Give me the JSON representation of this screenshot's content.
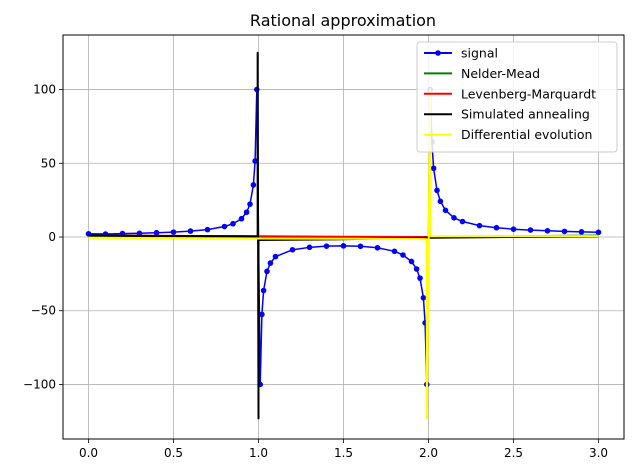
{
  "chart_data": {
    "type": "line",
    "title": "Rational approximation",
    "xlabel": "",
    "ylabel": "",
    "xlim": [
      -0.15,
      3.15
    ],
    "ylim": [
      -137,
      137
    ],
    "xticks": [
      0.0,
      0.5,
      1.0,
      1.5,
      2.0,
      2.5,
      3.0
    ],
    "xtick_labels": [
      "0.0",
      "0.5",
      "1.0",
      "1.5",
      "2.0",
      "2.5",
      "3.0"
    ],
    "yticks": [
      -100,
      -50,
      0,
      50,
      100
    ],
    "ytick_labels": [
      "−100",
      "−50",
      "0",
      "50",
      "100"
    ],
    "grid": true,
    "legend_position": "top-right",
    "series": [
      {
        "name": "signal",
        "color": "#0000ff",
        "marker": "dot",
        "points": [
          [
            0.0,
            2.2
          ],
          [
            0.1,
            2.0
          ],
          [
            0.2,
            2.3
          ],
          [
            0.3,
            2.5
          ],
          [
            0.4,
            2.9
          ],
          [
            0.5,
            3.3
          ],
          [
            0.6,
            4.0
          ],
          [
            0.7,
            5.0
          ],
          [
            0.8,
            7.1
          ],
          [
            0.85,
            9.0
          ],
          [
            0.9,
            12.4
          ],
          [
            0.93,
            16.8
          ],
          [
            0.95,
            22.3
          ],
          [
            0.97,
            35.3
          ],
          [
            0.98,
            51.5
          ],
          [
            0.99,
            100.0
          ],
          [
            1.01,
            -100.0
          ],
          [
            1.02,
            -52.5
          ],
          [
            1.03,
            -36.3
          ],
          [
            1.05,
            -23.3
          ],
          [
            1.07,
            -17.7
          ],
          [
            1.1,
            -13.3
          ],
          [
            1.2,
            -8.7
          ],
          [
            1.3,
            -7.0
          ],
          [
            1.4,
            -6.2
          ],
          [
            1.5,
            -6.0
          ],
          [
            1.6,
            -6.3
          ],
          [
            1.7,
            -7.3
          ],
          [
            1.8,
            -9.7
          ],
          [
            1.85,
            -12.2
          ],
          [
            1.9,
            -16.6
          ],
          [
            1.93,
            -21.7
          ],
          [
            1.95,
            -27.9
          ],
          [
            1.97,
            -41.2
          ],
          [
            1.98,
            -58.2
          ],
          [
            1.99,
            -100.0
          ],
          [
            2.01,
            100.0
          ],
          [
            2.02,
            64.5
          ],
          [
            2.03,
            46.6
          ],
          [
            2.05,
            31.6
          ],
          [
            2.07,
            24.2
          ],
          [
            2.1,
            18.1
          ],
          [
            2.15,
            13.0
          ],
          [
            2.2,
            10.5
          ],
          [
            2.3,
            7.7
          ],
          [
            2.4,
            6.3
          ],
          [
            2.5,
            5.3
          ],
          [
            2.6,
            4.7
          ],
          [
            2.7,
            4.2
          ],
          [
            2.8,
            3.8
          ],
          [
            2.9,
            3.5
          ],
          [
            3.0,
            3.2
          ]
        ]
      },
      {
        "name": "Nelder-Mead",
        "color": "#008000",
        "points": [
          [
            0.0,
            0.5
          ],
          [
            0.5,
            0.3
          ],
          [
            1.0,
            0.0
          ],
          [
            1.5,
            -0.2
          ],
          [
            2.0,
            -0.1
          ],
          [
            2.5,
            0.5
          ],
          [
            3.0,
            1.0
          ]
        ]
      },
      {
        "name": "Levenberg-Marquardt",
        "color": "#ff0000",
        "points": [
          [
            0.0,
            1.0
          ],
          [
            0.5,
            0.8
          ],
          [
            1.0,
            0.5
          ],
          [
            1.5,
            0.2
          ],
          [
            2.0,
            0.0
          ],
          [
            2.5,
            0.3
          ],
          [
            3.0,
            0.6
          ]
        ]
      },
      {
        "name": "Simulated annealing",
        "color": "#000000",
        "points": [
          [
            0.0,
            1.0
          ],
          [
            0.5,
            0.6
          ],
          [
            0.9,
            0.5
          ],
          [
            0.995,
            0.4
          ],
          [
            0.995,
            125.0
          ],
          [
            1.0,
            -123.0
          ],
          [
            1.0,
            -2.0
          ],
          [
            1.5,
            -1.5
          ],
          [
            2.0,
            -0.5
          ],
          [
            2.5,
            0.0
          ],
          [
            3.0,
            0.3
          ]
        ]
      },
      {
        "name": "Differential evolution",
        "color": "#ffff00",
        "points": [
          [
            0.0,
            -0.5
          ],
          [
            0.5,
            -0.8
          ],
          [
            1.0,
            -1.0
          ],
          [
            1.5,
            -1.2
          ],
          [
            1.9,
            -1.3
          ],
          [
            1.99,
            -1.5
          ],
          [
            1.99,
            -123.0
          ],
          [
            2.01,
            100.0
          ],
          [
            2.01,
            0.5
          ],
          [
            2.5,
            0.6
          ],
          [
            3.0,
            0.6
          ]
        ]
      }
    ]
  }
}
